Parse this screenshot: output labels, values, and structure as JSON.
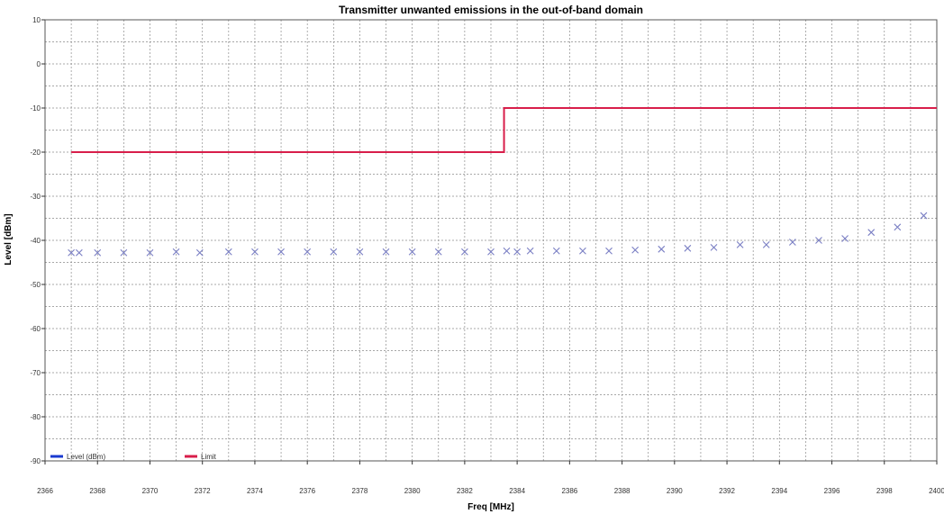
{
  "colors": {
    "limit": "#d81e4a",
    "level": "#1a3ad0",
    "marker": "#7a7fc4",
    "grid": "#8c8c8c"
  },
  "chart_data": {
    "type": "line",
    "title": "Transmitter unwanted emissions in the out-of-band domain",
    "xlabel": "Freq [MHz]",
    "ylabel": "Level [dBm]",
    "xlim": [
      2366,
      2400
    ],
    "ylim": [
      -90,
      10
    ],
    "x_ticks": [
      2366,
      2368,
      2370,
      2372,
      2374,
      2376,
      2378,
      2380,
      2382,
      2384,
      2386,
      2388,
      2390,
      2392,
      2394,
      2396,
      2398,
      2400
    ],
    "y_ticks": [
      10,
      0,
      -10,
      -20,
      -30,
      -40,
      -50,
      -60,
      -70,
      -80,
      -90
    ],
    "grid": true,
    "legend_position": "bottom-left",
    "series": [
      {
        "name": "Limit",
        "type": "line",
        "x": [
          2367,
          2383.5,
          2383.5,
          2400
        ],
        "y": [
          -20,
          -20,
          -10,
          -10
        ]
      },
      {
        "name": "Level (dBm)",
        "type": "scatter",
        "x": [
          2367,
          2367.3,
          2368,
          2369,
          2370,
          2371,
          2371.9,
          2373,
          2374,
          2375,
          2376,
          2377,
          2378,
          2379,
          2380,
          2381,
          2382,
          2383,
          2383.6,
          2384,
          2384.5,
          2385.5,
          2386.5,
          2387.5,
          2388.5,
          2389.5,
          2390.5,
          2391.5,
          2392.5,
          2393.5,
          2394.5,
          2395.5,
          2396.5,
          2397.5,
          2398.5,
          2399.5
        ],
        "y": [
          -42.8,
          -42.8,
          -42.8,
          -42.8,
          -42.8,
          -42.6,
          -42.8,
          -42.6,
          -42.6,
          -42.6,
          -42.6,
          -42.6,
          -42.6,
          -42.6,
          -42.6,
          -42.6,
          -42.6,
          -42.6,
          -42.4,
          -42.6,
          -42.4,
          -42.4,
          -42.4,
          -42.4,
          -42.2,
          -42,
          -41.8,
          -41.6,
          -41,
          -41,
          -40.4,
          -40,
          -39.6,
          -38.2,
          -37,
          -34.4
        ]
      }
    ]
  }
}
